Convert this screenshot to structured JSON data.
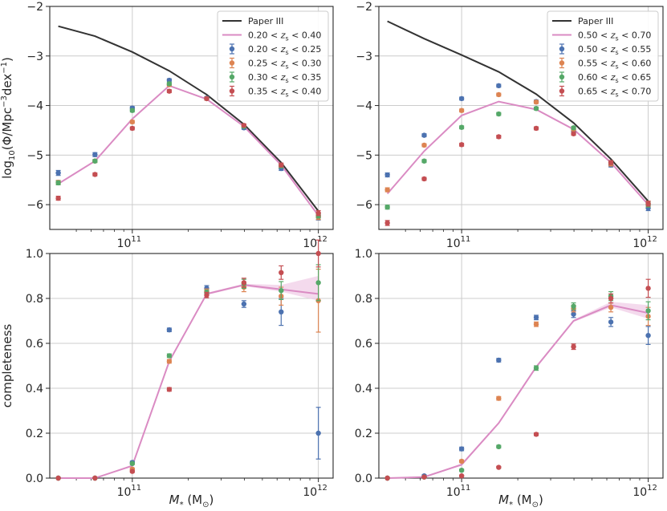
{
  "colors": {
    "blue": "#4c72b0",
    "orange": "#dd8452",
    "green": "#55a868",
    "red": "#c44e52",
    "pink": "#da8bc3",
    "band": "#f0cbe6",
    "black": "#333333",
    "grid": "#cccccc",
    "spine": "#262626"
  },
  "chart_data": [
    {
      "panel": "top-left",
      "type": "scatter+line",
      "xscale": "log",
      "xlim": [
        36000000000.0,
        1200000000000.0
      ],
      "ylim": [
        -6.5,
        -2
      ],
      "yticks": [
        -6,
        -5,
        -4,
        -3,
        -2
      ],
      "ytick_labels": [
        "−6",
        "−5",
        "−4",
        "−3",
        "−2"
      ],
      "xtick_labels": [
        {
          "base": "10",
          "exp": "11"
        },
        {
          "base": "10",
          "exp": "12"
        }
      ],
      "ylabel": {
        "pre": "log",
        "sub": "10",
        "mid": "(Φ/Mpc",
        "sup1": "−3",
        "dex": "dex",
        "sup2": "−1",
        "post": ")"
      },
      "xlabel": "",
      "x": [
        40000000000.0,
        63000000000.0,
        100000000000.0,
        158000000000.0,
        251000000000.0,
        398000000000.0,
        631000000000.0,
        1000000000000.0
      ],
      "reference": {
        "name": "Paper III",
        "values": [
          -2.4,
          -2.6,
          -2.92,
          -3.3,
          -3.78,
          -4.38,
          -5.15,
          -6.13
        ]
      },
      "model": {
        "name": "0.20 < z_s < 0.40",
        "values": [
          -5.58,
          -5.12,
          -4.27,
          -3.6,
          -3.87,
          -4.42,
          -5.2,
          -6.22
        ]
      },
      "series": [
        {
          "name": "0.20 < z_s < 0.25",
          "color": "blue",
          "values": [
            -5.36,
            -4.99,
            -4.05,
            -3.49,
            -3.85,
            -4.45,
            -5.27,
            -6.25
          ],
          "err": [
            0.05,
            0.04,
            0.03,
            0.03,
            0.03,
            0.03,
            0.04,
            0.06
          ]
        },
        {
          "name": "0.25 < z_s < 0.30",
          "color": "orange",
          "values": [
            -5.55,
            -5.12,
            -4.33,
            -3.58,
            -3.86,
            -4.42,
            -5.22,
            -6.25
          ],
          "err": [
            0.04,
            0.03,
            0.03,
            0.03,
            0.03,
            0.03,
            0.04,
            0.05
          ]
        },
        {
          "name": "0.30 < z_s < 0.35",
          "color": "green",
          "values": [
            -5.56,
            -5.12,
            -4.1,
            -3.56,
            -3.86,
            -4.42,
            -5.22,
            -6.22
          ],
          "err": [
            0.04,
            0.03,
            0.03,
            0.03,
            0.03,
            0.03,
            0.04,
            0.05
          ]
        },
        {
          "name": "0.35 < z_s < 0.40",
          "color": "red",
          "values": [
            -5.87,
            -5.39,
            -4.46,
            -3.71,
            -3.86,
            -4.4,
            -5.2,
            -6.17
          ],
          "err": [
            0.04,
            0.03,
            0.03,
            0.03,
            0.03,
            0.03,
            0.04,
            0.05
          ]
        }
      ],
      "legend": "top-right"
    },
    {
      "panel": "top-right",
      "type": "scatter+line",
      "xscale": "log",
      "xlim": [
        36000000000.0,
        1200000000000.0
      ],
      "ylim": [
        -6.5,
        -2
      ],
      "yticks": [
        -6,
        -5,
        -4,
        -3,
        -2
      ],
      "ytick_labels": [
        "−6",
        "−5",
        "−4",
        "−3",
        "−2"
      ],
      "xtick_labels": [
        {
          "base": "10",
          "exp": "11"
        },
        {
          "base": "10",
          "exp": "12"
        }
      ],
      "xlabel": "",
      "x": [
        40000000000.0,
        63000000000.0,
        100000000000.0,
        158000000000.0,
        251000000000.0,
        398000000000.0,
        631000000000.0,
        1000000000000.0
      ],
      "reference": {
        "name": "Paper III",
        "values": [
          -2.3,
          -2.65,
          -2.98,
          -3.32,
          -3.77,
          -4.35,
          -5.08,
          -5.93
        ]
      },
      "model": {
        "name": "0.50 < z_s < 0.70",
        "values": [
          -5.78,
          -4.92,
          -4.2,
          -3.92,
          -4.08,
          -4.48,
          -5.15,
          -6.0
        ]
      },
      "series": [
        {
          "name": "0.50 < z_s < 0.55",
          "color": "blue",
          "values": [
            -5.4,
            -4.6,
            -3.86,
            -3.6,
            -3.92,
            -4.52,
            -5.2,
            -6.07
          ],
          "err": [
            0.04,
            0.03,
            0.03,
            0.03,
            0.03,
            0.03,
            0.04,
            0.05
          ]
        },
        {
          "name": "0.55 < z_s < 0.60",
          "color": "orange",
          "values": [
            -5.7,
            -4.8,
            -4.1,
            -3.78,
            -3.93,
            -4.48,
            -5.18,
            -5.98
          ],
          "err": [
            0.04,
            0.03,
            0.03,
            0.03,
            0.03,
            0.03,
            0.04,
            0.05
          ]
        },
        {
          "name": "0.60 < z_s < 0.65",
          "color": "green",
          "values": [
            -6.05,
            -5.12,
            -4.44,
            -4.17,
            -4.06,
            -4.45,
            -5.15,
            -6.0
          ],
          "err": [
            0.04,
            0.03,
            0.03,
            0.03,
            0.03,
            0.03,
            0.04,
            0.05
          ]
        },
        {
          "name": "0.65 < z_s < 0.70",
          "color": "red",
          "values": [
            -6.37,
            -5.48,
            -4.79,
            -4.63,
            -4.46,
            -4.57,
            -5.15,
            -5.98
          ],
          "err": [
            0.05,
            0.03,
            0.03,
            0.03,
            0.03,
            0.03,
            0.04,
            0.05
          ]
        }
      ],
      "legend": "top-right"
    },
    {
      "panel": "bottom-left",
      "type": "scatter+line",
      "xscale": "log",
      "xlim": [
        36000000000.0,
        1200000000000.0
      ],
      "ylim": [
        0,
        1.0
      ],
      "yticks": [
        0,
        0.2,
        0.4,
        0.6,
        0.8,
        1.0
      ],
      "ytick_labels": [
        "0.0",
        "0.2",
        "0.4",
        "0.6",
        "0.8",
        "1.0"
      ],
      "xtick_labels": [
        {
          "base": "10",
          "exp": "11"
        },
        {
          "base": "10",
          "exp": "12"
        }
      ],
      "ylabel": "completeness",
      "xlabel": {
        "pre": "M",
        "sub": "*",
        "mid": " (M",
        "sub2": "⊙",
        "post": ")"
      },
      "x": [
        40000000000.0,
        63000000000.0,
        100000000000.0,
        158000000000.0,
        251000000000.0,
        398000000000.0,
        631000000000.0,
        1000000000000.0
      ],
      "model": {
        "values": [
          0.0,
          0.0,
          0.055,
          0.52,
          0.82,
          0.86,
          0.84,
          0.82
        ],
        "band_lo": [
          0.0,
          0.0,
          0.05,
          0.515,
          0.815,
          0.855,
          0.83,
          0.79
        ],
        "band_hi": [
          0.0,
          0.0,
          0.06,
          0.525,
          0.825,
          0.865,
          0.86,
          0.9
        ]
      },
      "series": [
        {
          "color": "blue",
          "values": [
            0.0,
            0.0,
            0.07,
            0.66,
            0.845,
            0.775,
            0.74,
            0.2
          ],
          "err": [
            0.0,
            0.0,
            0.005,
            0.008,
            0.012,
            0.015,
            0.06,
            0.115
          ]
        },
        {
          "color": "orange",
          "values": [
            0.0,
            0.0,
            0.04,
            0.52,
            0.83,
            0.85,
            0.81,
            0.79
          ],
          "err": [
            0.0,
            0.0,
            0.005,
            0.008,
            0.012,
            0.02,
            0.04,
            0.14
          ]
        },
        {
          "color": "green",
          "values": [
            0.0,
            0.0,
            0.065,
            0.545,
            0.825,
            0.865,
            0.835,
            0.87
          ],
          "err": [
            0.0,
            0.0,
            0.005,
            0.008,
            0.012,
            0.02,
            0.04,
            0.08
          ]
        },
        {
          "color": "red",
          "values": [
            0.0,
            0.0,
            0.03,
            0.395,
            0.815,
            0.87,
            0.915,
            1.0
          ],
          "err": [
            0.0,
            0.0,
            0.005,
            0.008,
            0.012,
            0.02,
            0.03,
            0.06
          ]
        }
      ]
    },
    {
      "panel": "bottom-right",
      "type": "scatter+line",
      "xscale": "log",
      "xlim": [
        36000000000.0,
        1200000000000.0
      ],
      "ylim": [
        0,
        1.0
      ],
      "yticks": [
        0,
        0.2,
        0.4,
        0.6,
        0.8,
        1.0
      ],
      "ytick_labels": [
        "0.0",
        "0.2",
        "0.4",
        "0.6",
        "0.8",
        "1.0"
      ],
      "xtick_labels": [
        {
          "base": "10",
          "exp": "11"
        },
        {
          "base": "10",
          "exp": "12"
        }
      ],
      "xlabel": {
        "pre": "M",
        "sub": "*",
        "mid": " (M",
        "sub2": "⊙",
        "post": ")"
      },
      "x": [
        40000000000.0,
        63000000000.0,
        100000000000.0,
        158000000000.0,
        251000000000.0,
        398000000000.0,
        631000000000.0,
        1000000000000.0
      ],
      "model": {
        "values": [
          0.0,
          0.005,
          0.06,
          0.245,
          0.495,
          0.7,
          0.77,
          0.735
        ],
        "band_lo": [
          0.0,
          0.005,
          0.055,
          0.24,
          0.49,
          0.695,
          0.76,
          0.71
        ],
        "band_hi": [
          0.0,
          0.005,
          0.065,
          0.25,
          0.5,
          0.705,
          0.785,
          0.77
        ]
      },
      "series": [
        {
          "color": "blue",
          "values": [
            0.0,
            0.01,
            0.13,
            0.525,
            0.715,
            0.73,
            0.695,
            0.635
          ],
          "err": [
            0.0,
            0.005,
            0.008,
            0.008,
            0.01,
            0.015,
            0.02,
            0.04
          ]
        },
        {
          "color": "orange",
          "values": [
            0.0,
            0.005,
            0.075,
            0.355,
            0.685,
            0.755,
            0.76,
            0.72
          ],
          "err": [
            0.0,
            0.003,
            0.006,
            0.008,
            0.01,
            0.015,
            0.02,
            0.04
          ]
        },
        {
          "color": "green",
          "values": [
            0.0,
            0.005,
            0.035,
            0.14,
            0.49,
            0.765,
            0.81,
            0.745
          ],
          "err": [
            0.0,
            0.003,
            0.005,
            0.006,
            0.01,
            0.015,
            0.02,
            0.04
          ]
        },
        {
          "color": "red",
          "values": [
            0.0,
            0.005,
            0.01,
            0.048,
            0.195,
            0.585,
            0.8,
            0.845
          ],
          "err": [
            0.0,
            0.002,
            0.003,
            0.004,
            0.006,
            0.012,
            0.02,
            0.04
          ]
        }
      ]
    }
  ]
}
